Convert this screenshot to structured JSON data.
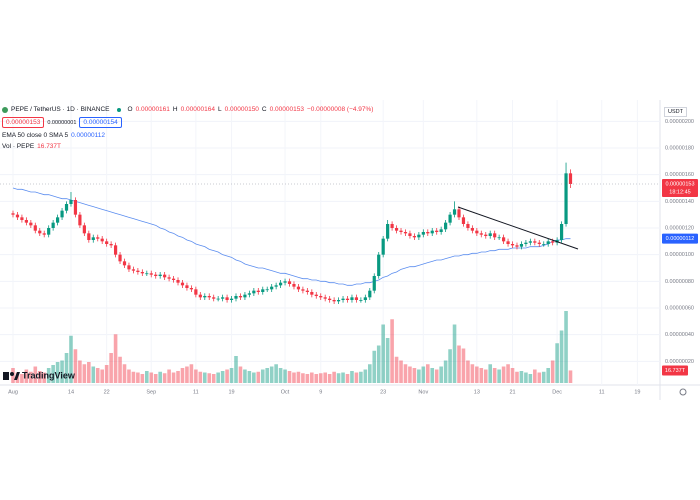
{
  "header": {
    "symbol": "PEPE / TetherUS · 1D · BINANCE",
    "ohlc": [
      {
        "key": "O",
        "value": "0.00000161"
      },
      {
        "key": "H",
        "value": "0.00000164"
      },
      {
        "key": "L",
        "value": "0.00000150"
      },
      {
        "key": "C",
        "value": "0.00000153"
      }
    ],
    "change": "−0.00000008 (−4.97%)",
    "sell": "0.00000153",
    "spread": "0.00000001",
    "buy": "0.00000154",
    "ema_label": "EMA 50 close 0 SMA 5",
    "ema_value": "0.00000112",
    "vol_label": "Vol · PEPE",
    "vol_value": "16.737T"
  },
  "price_axis": {
    "currency": "USDT",
    "last_price": "0.00000153",
    "countdown": "18:12:45",
    "ema_price": "0.00000112",
    "volume": "16.737T"
  },
  "logo": "TradingView",
  "chart_data": {
    "type": "candlestick",
    "up_color": "#089981",
    "down_color": "#f23645",
    "grid": true,
    "ylim": [
      -9e-08,
      2.16e-06
    ],
    "yticks": [
      {
        "value": 2e-07,
        "label": "0.00000020"
      },
      {
        "value": 4e-07,
        "label": "0.00000040"
      },
      {
        "value": 6e-07,
        "label": "0.00000060"
      },
      {
        "value": 8e-07,
        "label": "0.00000080"
      },
      {
        "value": 1e-06,
        "label": "0.00000100"
      },
      {
        "value": 1.2e-06,
        "label": "0.00000120"
      },
      {
        "value": 1.4e-06,
        "label": "0.00000140"
      },
      {
        "value": 1.6e-06,
        "label": "0.00000160"
      },
      {
        "value": 1.8e-06,
        "label": "0.00000180"
      },
      {
        "value": 2e-06,
        "label": "0.00000200"
      }
    ],
    "categories": [
      "Aug",
      null,
      null,
      null,
      null,
      null,
      null,
      null,
      null,
      null,
      null,
      null,
      null,
      "14",
      null,
      null,
      null,
      null,
      null,
      null,
      null,
      "22",
      null,
      null,
      null,
      null,
      null,
      null,
      null,
      null,
      null,
      "Sep",
      null,
      null,
      null,
      null,
      null,
      null,
      null,
      null,
      null,
      "11",
      null,
      null,
      null,
      null,
      null,
      null,
      null,
      "19",
      null,
      null,
      null,
      null,
      null,
      null,
      null,
      null,
      null,
      null,
      null,
      "Oct",
      null,
      null,
      null,
      null,
      null,
      null,
      null,
      "9",
      null,
      null,
      null,
      null,
      null,
      null,
      null,
      null,
      null,
      null,
      null,
      null,
      null,
      "23",
      null,
      null,
      null,
      null,
      null,
      null,
      null,
      null,
      "Nov",
      null,
      null,
      null,
      null,
      null,
      null,
      null,
      null,
      null,
      null,
      null,
      "13",
      null,
      null,
      null,
      null,
      null,
      null,
      null,
      "21",
      null,
      null,
      null,
      null,
      null,
      null,
      null,
      null,
      null,
      "Dec",
      null,
      null,
      null,
      null,
      null,
      null,
      null,
      null,
      null,
      "11",
      null,
      null,
      null,
      null,
      null,
      null,
      null,
      "19"
    ],
    "open": [
      1.31e-06,
      1.3e-06,
      1.28e-06,
      1.26e-06,
      1.24e-06,
      1.22e-06,
      1.18e-06,
      1.16e-06,
      1.15e-06,
      1.2e-06,
      1.24e-06,
      1.28e-06,
      1.33e-06,
      1.38e-06,
      1.41e-06,
      1.3e-06,
      1.22e-06,
      1.16e-06,
      1.11e-06,
      1.13e-06,
      1.12e-06,
      1.1e-06,
      1.08e-06,
      1.07e-06,
      1e-06,
      9.5e-07,
      9.2e-07,
      8.9e-07,
      8.8e-07,
      8.7e-07,
      8.6e-07,
      8.6e-07,
      8.5e-07,
      8.4e-07,
      8.5e-07,
      8.3e-07,
      8.2e-07,
      8.1e-07,
      7.9e-07,
      7.7e-07,
      7.5e-07,
      7.4e-07,
      7e-07,
      6.8e-07,
      6.9e-07,
      6.8e-07,
      6.7e-07,
      6.7e-07,
      6.8e-07,
      6.6e-07,
      6.7e-07,
      6.9e-07,
      6.8e-07,
      7e-07,
      7.1e-07,
      7.3e-07,
      7.2e-07,
      7.4e-07,
      7.4e-07,
      7.6e-07,
      7.7e-07,
      7.9e-07,
      8e-07,
      7.8e-07,
      7.6e-07,
      7.4e-07,
      7.3e-07,
      7.2e-07,
      7e-07,
      6.9e-07,
      6.8e-07,
      6.7e-07,
      6.6e-07,
      6.5e-07,
      6.6e-07,
      6.7e-07,
      6.6e-07,
      6.8e-07,
      6.6e-07,
      6.6e-07,
      6.8e-07,
      7.3e-07,
      8.4e-07,
      1e-06,
      1.12e-06,
      1.23e-06,
      1.2e-06,
      1.18e-06,
      1.17e-06,
      1.16e-06,
      1.14e-06,
      1.13e-06,
      1.15e-06,
      1.17e-06,
      1.16e-06,
      1.18e-06,
      1.17e-06,
      1.19e-06,
      1.24e-06,
      1.3e-06,
      1.34e-06,
      1.28e-06,
      1.23e-06,
      1.2e-06,
      1.18e-06,
      1.16e-06,
      1.15e-06,
      1.14e-06,
      1.16e-06,
      1.13e-06,
      1.13e-06,
      1.1e-06,
      1.08e-06,
      1.07e-06,
      1.06e-06,
      1.08e-06,
      1.09e-06,
      1.1e-06,
      1.09e-06,
      1.08e-06,
      1.08e-06,
      1.1e-06,
      1.09e-06,
      1.11e-06,
      1.23e-06,
      1.61e-06,
      null,
      null,
      null,
      null,
      null,
      null,
      null,
      null,
      null,
      null,
      null,
      null,
      null,
      null,
      null
    ],
    "high": [
      1.33e-06,
      1.32e-06,
      1.3e-06,
      1.28e-06,
      1.26e-06,
      1.24e-06,
      1.2e-06,
      1.18e-06,
      1.22e-06,
      1.26e-06,
      1.3e-06,
      1.35e-06,
      1.4e-06,
      1.47e-06,
      1.43e-06,
      1.32e-06,
      1.24e-06,
      1.18e-06,
      1.15e-06,
      1.15e-06,
      1.14e-06,
      1.12e-06,
      1.1e-06,
      1.09e-06,
      1.02e-06,
      9.7e-07,
      9.4e-07,
      9.1e-07,
      9e-07,
      8.9e-07,
      8.8e-07,
      8.8e-07,
      8.7e-07,
      8.7e-07,
      8.7e-07,
      8.5e-07,
      8.4e-07,
      8.3e-07,
      8.1e-07,
      7.9e-07,
      7.7e-07,
      7.6e-07,
      7.2e-07,
      7.1e-07,
      7.1e-07,
      7e-07,
      6.9e-07,
      7e-07,
      7e-07,
      6.9e-07,
      7.1e-07,
      7.1e-07,
      7.2e-07,
      7.3e-07,
      7.5e-07,
      7.5e-07,
      7.6e-07,
      7.6e-07,
      7.8e-07,
      7.9e-07,
      8.1e-07,
      8.2e-07,
      8.2e-07,
      8e-07,
      7.8e-07,
      7.6e-07,
      7.5e-07,
      7.4e-07,
      7.2e-07,
      7.1e-07,
      7e-07,
      6.9e-07,
      6.8e-07,
      6.8e-07,
      6.9e-07,
      6.9e-07,
      7e-07,
      7e-07,
      6.8e-07,
      7e-07,
      7.5e-07,
      8.6e-07,
      1.02e-06,
      1.14e-06,
      1.26e-06,
      1.25e-06,
      1.22e-06,
      1.2e-06,
      1.19e-06,
      1.18e-06,
      1.16e-06,
      1.17e-06,
      1.19e-06,
      1.19e-06,
      1.2e-06,
      1.2e-06,
      1.21e-06,
      1.26e-06,
      1.32e-06,
      1.4e-06,
      1.36e-06,
      1.3e-06,
      1.25e-06,
      1.22e-06,
      1.2e-06,
      1.18e-06,
      1.17e-06,
      1.18e-06,
      1.18e-06,
      1.15e-06,
      1.15e-06,
      1.12e-06,
      1.1e-06,
      1.09e-06,
      1.1e-06,
      1.11e-06,
      1.12e-06,
      1.12e-06,
      1.11e-06,
      1.1e-06,
      1.12e-06,
      1.12e-06,
      1.13e-06,
      1.25e-06,
      1.69e-06,
      1.64e-06,
      null,
      null,
      null,
      null,
      null,
      null,
      null,
      null,
      null,
      null,
      null,
      null,
      null,
      null,
      null
    ],
    "low": [
      1.28e-06,
      1.26e-06,
      1.24e-06,
      1.22e-06,
      1.2e-06,
      1.16e-06,
      1.14e-06,
      1.13e-06,
      1.13e-06,
      1.18e-06,
      1.22e-06,
      1.26e-06,
      1.31e-06,
      1.36e-06,
      1.28e-06,
      1.2e-06,
      1.14e-06,
      1.09e-06,
      1.09e-06,
      1.1e-06,
      1.08e-06,
      1.06e-06,
      1.05e-06,
      9.8e-07,
      9.3e-07,
      9e-07,
      8.7e-07,
      8.6e-07,
      8.5e-07,
      8.4e-07,
      8.4e-07,
      8.3e-07,
      8.2e-07,
      8.2e-07,
      8.1e-07,
      8e-07,
      7.9e-07,
      7.7e-07,
      7.5e-07,
      7.3e-07,
      7.2e-07,
      6.8e-07,
      6.6e-07,
      6.6e-07,
      6.6e-07,
      6.5e-07,
      6.5e-07,
      6.5e-07,
      6.4e-07,
      6.4e-07,
      6.5e-07,
      6.6e-07,
      6.6e-07,
      6.8e-07,
      6.9e-07,
      7e-07,
      7e-07,
      7.2e-07,
      7.2e-07,
      7.4e-07,
      7.5e-07,
      7.7e-07,
      7.6e-07,
      7.4e-07,
      7.2e-07,
      7.1e-07,
      7e-07,
      6.8e-07,
      6.7e-07,
      6.6e-07,
      6.5e-07,
      6.4e-07,
      6.3e-07,
      6.3e-07,
      6.4e-07,
      6.4e-07,
      6.4e-07,
      6.4e-07,
      6.4e-07,
      6.4e-07,
      6.6e-07,
      7.1e-07,
      8.2e-07,
      9.8e-07,
      1.1e-06,
      1.18e-06,
      1.16e-06,
      1.15e-06,
      1.14e-06,
      1.12e-06,
      1.11e-06,
      1.11e-06,
      1.13e-06,
      1.14e-06,
      1.14e-06,
      1.15e-06,
      1.15e-06,
      1.17e-06,
      1.22e-06,
      1.28e-06,
      1.26e-06,
      1.21e-06,
      1.18e-06,
      1.16e-06,
      1.14e-06,
      1.13e-06,
      1.12e-06,
      1.12e-06,
      1.11e-06,
      1.11e-06,
      1.08e-06,
      1.06e-06,
      1.05e-06,
      1.04e-06,
      1.04e-06,
      1.06e-06,
      1.07e-06,
      1.07e-06,
      1.06e-06,
      1.06e-06,
      1.06e-06,
      1.07e-06,
      1.07e-06,
      1.09e-06,
      1.21e-06,
      1.5e-06,
      null,
      null,
      null,
      null,
      null,
      null,
      null,
      null,
      null,
      null,
      null,
      null,
      null,
      null,
      null
    ],
    "close": [
      1.3e-06,
      1.28e-06,
      1.26e-06,
      1.24e-06,
      1.22e-06,
      1.18e-06,
      1.16e-06,
      1.15e-06,
      1.2e-06,
      1.24e-06,
      1.28e-06,
      1.33e-06,
      1.38e-06,
      1.41e-06,
      1.3e-06,
      1.22e-06,
      1.16e-06,
      1.11e-06,
      1.13e-06,
      1.12e-06,
      1.1e-06,
      1.08e-06,
      1.07e-06,
      1e-06,
      9.5e-07,
      9.2e-07,
      8.9e-07,
      8.8e-07,
      8.7e-07,
      8.6e-07,
      8.6e-07,
      8.5e-07,
      8.4e-07,
      8.5e-07,
      8.3e-07,
      8.2e-07,
      8.1e-07,
      7.9e-07,
      7.7e-07,
      7.5e-07,
      7.4e-07,
      7e-07,
      6.8e-07,
      6.9e-07,
      6.8e-07,
      6.7e-07,
      6.7e-07,
      6.8e-07,
      6.6e-07,
      6.7e-07,
      6.9e-07,
      6.8e-07,
      7e-07,
      7.1e-07,
      7.3e-07,
      7.2e-07,
      7.4e-07,
      7.4e-07,
      7.6e-07,
      7.7e-07,
      7.9e-07,
      8e-07,
      7.8e-07,
      7.6e-07,
      7.4e-07,
      7.3e-07,
      7.2e-07,
      7e-07,
      6.9e-07,
      6.8e-07,
      6.7e-07,
      6.6e-07,
      6.5e-07,
      6.6e-07,
      6.7e-07,
      6.6e-07,
      6.8e-07,
      6.6e-07,
      6.6e-07,
      6.8e-07,
      7.3e-07,
      8.4e-07,
      1e-06,
      1.12e-06,
      1.23e-06,
      1.2e-06,
      1.18e-06,
      1.17e-06,
      1.16e-06,
      1.14e-06,
      1.13e-06,
      1.15e-06,
      1.17e-06,
      1.16e-06,
      1.18e-06,
      1.17e-06,
      1.19e-06,
      1.24e-06,
      1.3e-06,
      1.34e-06,
      1.28e-06,
      1.23e-06,
      1.2e-06,
      1.18e-06,
      1.16e-06,
      1.15e-06,
      1.14e-06,
      1.16e-06,
      1.13e-06,
      1.13e-06,
      1.1e-06,
      1.08e-06,
      1.07e-06,
      1.06e-06,
      1.08e-06,
      1.09e-06,
      1.1e-06,
      1.09e-06,
      1.08e-06,
      1.08e-06,
      1.1e-06,
      1.09e-06,
      1.11e-06,
      1.23e-06,
      1.61e-06,
      1.53e-06,
      null,
      null,
      null,
      null,
      null,
      null,
      null,
      null,
      null,
      null,
      null,
      null,
      null,
      null,
      null
    ],
    "volume": [
      20,
      14,
      12,
      18,
      15,
      22,
      16,
      14,
      20,
      24,
      28,
      30,
      40,
      63,
      45,
      30,
      25,
      28,
      22,
      20,
      18,
      24,
      40,
      65,
      35,
      25,
      18,
      15,
      14,
      12,
      16,
      14,
      12,
      15,
      13,
      18,
      14,
      16,
      20,
      22,
      25,
      18,
      15,
      14,
      13,
      12,
      14,
      16,
      18,
      20,
      36,
      22,
      18,
      16,
      14,
      15,
      18,
      20,
      22,
      25,
      20,
      18,
      16,
      14,
      15,
      13,
      12,
      14,
      12,
      13,
      14,
      12,
      15,
      13,
      14,
      12,
      16,
      14,
      15,
      18,
      25,
      43,
      50,
      78,
      60,
      85,
      35,
      30,
      25,
      22,
      20,
      18,
      22,
      25,
      20,
      18,
      22,
      30,
      45,
      78,
      50,
      46,
      30,
      25,
      22,
      20,
      18,
      25,
      20,
      18,
      22,
      25,
      20,
      15,
      16,
      14,
      12,
      18,
      14,
      15,
      20,
      30,
      53,
      70,
      96,
      16.737,
      null,
      null,
      null,
      null,
      null,
      null,
      null,
      null,
      null,
      null,
      null,
      null,
      null,
      null,
      null
    ],
    "ema": {
      "color": "#5b8def",
      "values": [
        1.5e-06,
        1.49e-06,
        1.49e-06,
        1.48e-06,
        1.47e-06,
        1.47e-06,
        1.46e-06,
        1.45e-06,
        1.45e-06,
        1.44e-06,
        1.43e-06,
        1.42e-06,
        1.42e-06,
        1.41e-06,
        1.4e-06,
        1.39e-06,
        1.38e-06,
        1.37e-06,
        1.36e-06,
        1.35e-06,
        1.34e-06,
        1.33e-06,
        1.32e-06,
        1.31e-06,
        1.3e-06,
        1.29e-06,
        1.28e-06,
        1.27e-06,
        1.26e-06,
        1.25e-06,
        1.24e-06,
        1.23e-06,
        1.22e-06,
        1.2e-06,
        1.19e-06,
        1.17e-06,
        1.16e-06,
        1.14e-06,
        1.13e-06,
        1.11e-06,
        1.1e-06,
        1.08e-06,
        1.07e-06,
        1.06e-06,
        1.04e-06,
        1.03e-06,
        1.02e-06,
        1e-06,
        9.9e-07,
        9.8e-07,
        9.6e-07,
        9.5e-07,
        9.3e-07,
        9.2e-07,
        9.1e-07,
        9e-07,
        9e-07,
        8.9e-07,
        8.8e-07,
        8.7e-07,
        8.6e-07,
        8.6e-07,
        8.5e-07,
        8.4e-07,
        8.3e-07,
        8.2e-07,
        8.2e-07,
        8.1e-07,
        8.1e-07,
        8e-07,
        8e-07,
        7.9e-07,
        7.9e-07,
        7.8e-07,
        7.8e-07,
        7.7e-07,
        7.7e-07,
        7.8e-07,
        7.8e-07,
        7.9e-07,
        7.9e-07,
        8e-07,
        8.1e-07,
        8.3e-07,
        8.4e-07,
        8.6e-07,
        8.7e-07,
        8.9e-07,
        9e-07,
        9.1e-07,
        9.1e-07,
        9.2e-07,
        9.3e-07,
        9.4e-07,
        9.5e-07,
        9.6e-07,
        9.6e-07,
        9.7e-07,
        9.8e-07,
        9.9e-07,
        9.9e-07,
        1e-06,
        1e-06,
        1.01e-06,
        1.01e-06,
        1.02e-06,
        1.02e-06,
        1.03e-06,
        1.03e-06,
        1.04e-06,
        1.04e-06,
        1.04e-06,
        1.05e-06,
        1.05e-06,
        1.05e-06,
        1.05e-06,
        1.06e-06,
        1.06e-06,
        1.06e-06,
        1.07e-06,
        1.08e-06,
        1.1e-06,
        1.11e-06,
        1.11e-06,
        1.12e-06,
        1.12e-06,
        null,
        null,
        null,
        null,
        null,
        null,
        null,
        null,
        null,
        null,
        null,
        null,
        null,
        null,
        null
      ]
    }
  }
}
